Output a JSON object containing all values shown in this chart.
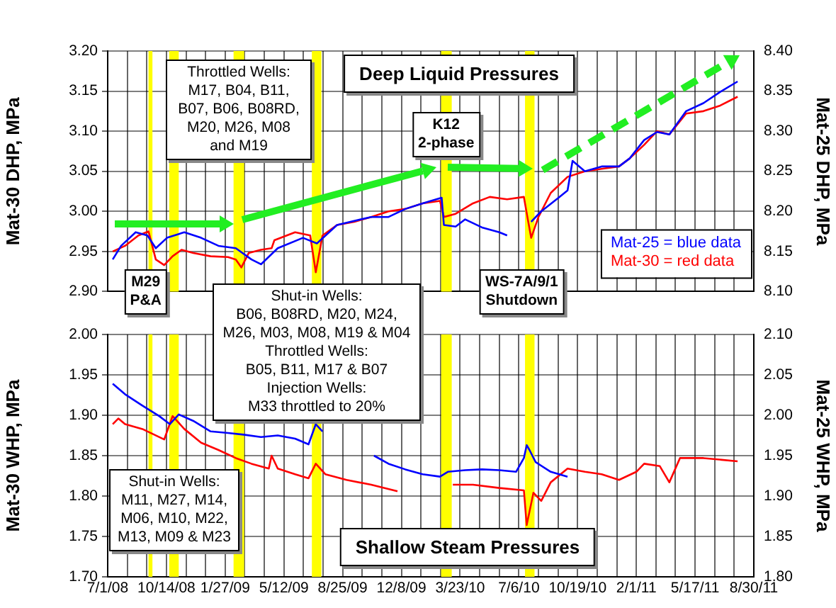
{
  "chart_data": [
    {
      "type": "line",
      "title": "Deep Liquid Pressures",
      "ylabel": "Mat-30 DHP, MPa",
      "y2label": "Mat-25 DHP, MPa",
      "series": [
        {
          "name": "Mat-25 = blue data",
          "color": "#0000ff",
          "axis": "y2",
          "x": [
            "2008-07-10",
            "2008-07-25",
            "2008-08-20",
            "2008-09-10",
            "2008-09-25",
            "2008-10-15",
            "2008-11-15",
            "2008-12-15",
            "2009-01-15",
            "2009-02-15",
            "2009-03-15",
            "2009-04-01",
            "2009-05-01",
            "2009-06-15",
            "2009-07-10",
            "2009-08-15",
            "2009-10-15",
            "2009-11-15",
            "2009-12-15",
            "2010-01-15",
            "2010-02-18",
            "2010-02-22",
            "2010-03-15",
            "2010-04-01",
            "2010-05-01",
            "2010-06-01",
            "2010-06-15",
            "2010-07-05",
            "2010-07-28",
            "2010-08-15",
            "2010-09-15",
            "2010-10-01",
            "2010-10-10",
            "2010-11-01",
            "2010-12-01",
            "2011-01-01",
            "2011-01-20",
            "2011-02-15",
            "2011-03-10",
            "2011-04-01",
            "2011-05-01",
            "2011-06-01",
            "2011-07-01",
            "2011-08-01"
          ],
          "values": [
            8.14,
            8.157,
            8.174,
            8.17,
            8.154,
            8.167,
            8.174,
            8.167,
            8.157,
            8.154,
            8.14,
            8.134,
            8.154,
            8.167,
            8.16,
            8.183,
            8.193,
            8.193,
            8.203,
            8.21,
            8.217,
            8.183,
            8.181,
            8.19,
            8.18,
            8.174,
            8.17,
            null,
            8.187,
            8.2,
            8.217,
            8.226,
            8.263,
            8.25,
            8.256,
            8.256,
            8.266,
            8.289,
            8.299,
            8.296,
            8.325,
            8.335,
            8.349,
            8.362
          ]
        },
        {
          "name": "Mat-30 = red data",
          "color": "#ff0000",
          "x": [
            "2008-07-10",
            "2008-08-01",
            "2008-08-25",
            "2008-09-12",
            "2008-09-25",
            "2008-10-10",
            "2008-10-25",
            "2008-11-10",
            "2008-12-01",
            "2009-01-01",
            "2009-02-01",
            "2009-02-15",
            "2009-02-25",
            "2009-03-10",
            "2009-04-01",
            "2009-04-20",
            "2009-04-25",
            "2009-06-01",
            "2009-06-28",
            "2009-07-08",
            "2009-07-20",
            "2009-08-15",
            "2009-09-15",
            "2009-10-15",
            "2009-11-15",
            "2009-12-15",
            "2010-01-15",
            "2010-02-15",
            "2010-02-22",
            "2010-03-15",
            "2010-04-15",
            "2010-05-15",
            "2010-06-15",
            "2010-07-15",
            "2010-07-22",
            "2010-07-28",
            "2010-08-10",
            "2010-09-01",
            "2010-10-01",
            "2010-11-01",
            "2010-12-01",
            "2011-01-01",
            "2011-01-20",
            "2011-02-15",
            "2011-03-10",
            "2011-04-01",
            "2011-05-01",
            "2011-06-01",
            "2011-07-01",
            "2011-08-01"
          ],
          "values": [
            2.95,
            2.957,
            2.97,
            2.975,
            2.94,
            2.933,
            2.944,
            2.952,
            2.948,
            2.944,
            2.943,
            2.94,
            2.93,
            2.948,
            2.952,
            2.954,
            2.964,
            2.974,
            2.97,
            2.924,
            2.97,
            2.983,
            2.987,
            2.993,
            3.0,
            3.003,
            3.01,
            3.013,
            2.993,
            2.997,
            3.01,
            3.018,
            3.015,
            3.018,
            2.99,
            2.967,
            2.993,
            3.023,
            3.043,
            3.05,
            3.053,
            3.056,
            3.066,
            3.083,
            3.1,
            3.096,
            3.122,
            3.125,
            3.132,
            3.143
          ]
        }
      ],
      "xlim": [
        "2008-07-01",
        "2011-08-30"
      ],
      "xticks": [
        {
          "value": "2008-07-01",
          "label": null
        },
        {
          "value": "2008-08-05",
          "label": null
        },
        {
          "value": "2008-09-09",
          "label": null
        },
        {
          "value": "2008-10-14",
          "label": null
        },
        {
          "value": "2008-11-18",
          "label": null
        },
        {
          "value": "2008-12-23",
          "label": null
        },
        {
          "value": "2009-01-27",
          "label": null
        },
        {
          "value": "2009-03-03",
          "label": null
        },
        {
          "value": "2009-04-07",
          "label": null
        },
        {
          "value": "2009-05-12",
          "label": null
        },
        {
          "value": "2009-06-16",
          "label": null
        },
        {
          "value": "2009-07-21",
          "label": null
        },
        {
          "value": "2009-08-25",
          "label": null
        },
        {
          "value": "2009-09-29",
          "label": null
        },
        {
          "value": "2009-11-03",
          "label": null
        },
        {
          "value": "2009-12-08",
          "label": null
        },
        {
          "value": "2010-01-12",
          "label": null
        },
        {
          "value": "2010-02-16",
          "label": null
        },
        {
          "value": "2010-03-23",
          "label": null
        },
        {
          "value": "2010-04-27",
          "label": null
        },
        {
          "value": "2010-06-01",
          "label": null
        },
        {
          "value": "2010-07-06",
          "label": null
        },
        {
          "value": "2010-08-10",
          "label": null
        },
        {
          "value": "2010-09-14",
          "label": null
        },
        {
          "value": "2010-10-19",
          "label": null
        },
        {
          "value": "2010-11-23",
          "label": null
        },
        {
          "value": "2010-12-28",
          "label": null
        },
        {
          "value": "2011-02-01",
          "label": null
        },
        {
          "value": "2011-03-08",
          "label": null
        },
        {
          "value": "2011-04-12",
          "label": null
        },
        {
          "value": "2011-05-17",
          "label": null
        },
        {
          "value": "2011-06-21",
          "label": null
        },
        {
          "value": "2011-07-26",
          "label": null
        },
        {
          "value": "2011-08-30",
          "label": null
        }
      ],
      "ylim": [
        2.9,
        3.2
      ],
      "yticks": [
        {
          "value": 2.9,
          "label": "2.90"
        },
        {
          "value": 2.95,
          "label": "2.95"
        },
        {
          "value": 3.0,
          "label": "3.00"
        },
        {
          "value": 3.05,
          "label": "3.05"
        },
        {
          "value": 3.1,
          "label": "3.10"
        },
        {
          "value": 3.15,
          "label": "3.15"
        },
        {
          "value": 3.2,
          "label": "3.20"
        }
      ],
      "y2lim": [
        8.1,
        8.4
      ],
      "y2ticks": [
        {
          "value": 8.1,
          "label": "8.10"
        },
        {
          "value": 8.15,
          "label": "8.15"
        },
        {
          "value": 8.2,
          "label": "8.20"
        },
        {
          "value": 8.25,
          "label": "8.25"
        },
        {
          "value": 8.3,
          "label": "8.30"
        },
        {
          "value": 8.35,
          "label": "8.35"
        },
        {
          "value": 8.4,
          "label": "8.40"
        }
      ],
      "bands": [
        {
          "axis": "x",
          "from": "2008-09-12",
          "to": "2008-09-19",
          "color": "#ffff00"
        },
        {
          "axis": "x",
          "from": "2008-10-19",
          "to": "2008-11-05",
          "color": "#ffff00"
        },
        {
          "axis": "x",
          "from": "2009-02-11",
          "to": "2009-03-02",
          "color": "#ffff00"
        },
        {
          "axis": "x",
          "from": "2009-07-01",
          "to": "2009-07-18",
          "color": "#ffff00"
        },
        {
          "axis": "x",
          "from": "2010-02-17",
          "to": "2010-03-08",
          "color": "#ffff00"
        },
        {
          "axis": "x",
          "from": "2010-07-17",
          "to": "2010-08-03",
          "color": "#ffff00"
        }
      ],
      "annotations": [
        "Throttled Wells:\nM17, B04, B11,\nB07, B06, B08RD,\nM20, M26, M08\nand M19",
        {
          "text": "M29\nP&A",
          "x": "2008-09-07",
          "y": 2.9
        },
        {
          "text": "K12\n2-phase",
          "x": "2010-02-26",
          "y": 3.095
        },
        {
          "text": "WS-7A/9/1\nShutdown",
          "x": "2010-07-11",
          "y": 2.9
        }
      ],
      "grid": true,
      "legend": "bottom right",
      "tick_labels": "y",
      "marker": "none",
      "line_style": "solid"
    },
    {
      "type": "line",
      "title": "Shallow Steam Pressures",
      "ylabel": "Mat-30 WHP, MPa",
      "y2label": "Mat-25 WHP, MPa",
      "series": [
        {
          "color": "#0000ff",
          "axis": "y2",
          "x": [
            "2008-07-10",
            "2008-08-01",
            "2008-09-01",
            "2008-10-01",
            "2008-10-20",
            "2008-11-05",
            "2008-12-01",
            "2009-01-01",
            "2009-02-01",
            "2009-03-01",
            "2009-04-01",
            "2009-05-01",
            "2009-06-01",
            "2009-06-25",
            "2009-07-08",
            "2009-07-20",
            "2009-09-01",
            "2009-10-20",
            "2009-11-15",
            "2009-12-15",
            "2010-01-15",
            "2010-02-15",
            "2010-03-01",
            "2010-04-01",
            "2010-05-01",
            "2010-06-01",
            "2010-07-01",
            "2010-07-15",
            "2010-07-20",
            "2010-07-25",
            "2010-08-05",
            "2010-09-01",
            "2010-10-01"
          ],
          "values": [
            2.039,
            2.026,
            2.012,
            1.999,
            1.989,
            2.001,
            1.993,
            1.98,
            1.978,
            1.976,
            1.973,
            1.975,
            1.971,
            1.964,
            1.989,
            1.98,
            null,
            1.95,
            1.94,
            1.933,
            1.927,
            1.924,
            1.93,
            1.932,
            1.933,
            1.932,
            1.93,
            1.947,
            1.963,
            1.957,
            1.942,
            1.93,
            1.924
          ]
        },
        {
          "color": "#ff0000",
          "x": [
            "2008-07-10",
            "2008-07-20",
            "2008-08-01",
            "2008-09-01",
            "2008-10-10",
            "2008-10-25",
            "2008-11-15",
            "2008-12-15",
            "2009-01-15",
            "2009-02-15",
            "2009-03-15",
            "2009-04-15",
            "2009-04-20",
            "2009-05-01",
            "2009-06-01",
            "2009-06-25",
            "2009-07-08",
            "2009-07-25",
            "2009-09-01",
            "2009-10-15",
            "2009-12-01",
            "2010-01-15",
            "2010-03-10",
            "2010-04-15",
            "2010-06-01",
            "2010-07-15",
            "2010-07-20",
            "2010-08-01",
            "2010-08-15",
            "2010-09-01",
            "2010-10-01",
            "2010-11-01",
            "2010-12-01",
            "2011-01-01",
            "2011-02-01",
            "2011-02-15",
            "2011-03-15",
            "2011-04-01",
            "2011-04-20",
            "2011-06-01",
            "2011-08-01"
          ],
          "values": [
            1.889,
            1.896,
            1.889,
            1.883,
            1.87,
            1.899,
            1.883,
            1.866,
            1.857,
            1.847,
            1.84,
            1.834,
            1.85,
            1.834,
            1.827,
            1.822,
            1.84,
            1.827,
            1.82,
            1.814,
            1.806,
            null,
            1.814,
            1.814,
            1.81,
            1.807,
            1.764,
            1.804,
            1.794,
            1.817,
            1.834,
            1.83,
            1.827,
            1.82,
            1.83,
            1.84,
            1.837,
            1.817,
            1.847,
            1.847,
            1.843
          ]
        }
      ],
      "xlim": [
        "2008-07-01",
        "2011-08-30"
      ],
      "xticks": [
        {
          "value": "2008-07-01",
          "label": "7/1/08"
        },
        {
          "value": "2008-08-05",
          "label": null
        },
        {
          "value": "2008-09-09",
          "label": null
        },
        {
          "value": "2008-10-14",
          "label": "10/14/08"
        },
        {
          "value": "2008-11-18",
          "label": null
        },
        {
          "value": "2008-12-23",
          "label": null
        },
        {
          "value": "2009-01-27",
          "label": "1/27/09"
        },
        {
          "value": "2009-03-03",
          "label": null
        },
        {
          "value": "2009-04-07",
          "label": null
        },
        {
          "value": "2009-05-12",
          "label": "5/12/09"
        },
        {
          "value": "2009-06-16",
          "label": null
        },
        {
          "value": "2009-07-21",
          "label": null
        },
        {
          "value": "2009-08-25",
          "label": "8/25/09"
        },
        {
          "value": "2009-09-29",
          "label": null
        },
        {
          "value": "2009-11-03",
          "label": null
        },
        {
          "value": "2009-12-08",
          "label": "12/8/09"
        },
        {
          "value": "2010-01-12",
          "label": null
        },
        {
          "value": "2010-02-16",
          "label": null
        },
        {
          "value": "2010-03-23",
          "label": "3/23/10"
        },
        {
          "value": "2010-04-27",
          "label": null
        },
        {
          "value": "2010-06-01",
          "label": null
        },
        {
          "value": "2010-07-06",
          "label": "7/6/10"
        },
        {
          "value": "2010-08-10",
          "label": null
        },
        {
          "value": "2010-09-14",
          "label": null
        },
        {
          "value": "2010-10-19",
          "label": "10/19/10"
        },
        {
          "value": "2010-11-23",
          "label": null
        },
        {
          "value": "2010-12-28",
          "label": null
        },
        {
          "value": "2011-02-01",
          "label": "2/1/11"
        },
        {
          "value": "2011-03-08",
          "label": null
        },
        {
          "value": "2011-04-12",
          "label": null
        },
        {
          "value": "2011-05-17",
          "label": "5/17/11"
        },
        {
          "value": "2011-06-21",
          "label": null
        },
        {
          "value": "2011-07-26",
          "label": null
        },
        {
          "value": "2011-08-30",
          "label": "8/30/11"
        }
      ],
      "ylim": [
        1.7,
        2.0
      ],
      "yticks": [
        {
          "value": 1.7,
          "label": "1.70"
        },
        {
          "value": 1.75,
          "label": "1.75"
        },
        {
          "value": 1.8,
          "label": "1.80"
        },
        {
          "value": 1.85,
          "label": "1.85"
        },
        {
          "value": 1.9,
          "label": "1.90"
        },
        {
          "value": 1.95,
          "label": "1.95"
        },
        {
          "value": 2.0,
          "label": "2.00"
        }
      ],
      "y2lim": [
        1.8,
        2.1
      ],
      "y2ticks": [
        {
          "value": 1.8,
          "label": "1.80"
        },
        {
          "value": 1.85,
          "label": "1.85"
        },
        {
          "value": 1.9,
          "label": "1.90"
        },
        {
          "value": 1.95,
          "label": "1.95"
        },
        {
          "value": 2.0,
          "label": "2.00"
        },
        {
          "value": 2.05,
          "label": "2.05"
        },
        {
          "value": 2.1,
          "label": "2.10"
        }
      ],
      "bands": [
        {
          "axis": "x",
          "from": "2008-09-12",
          "to": "2008-09-19",
          "color": "#ffff00"
        },
        {
          "axis": "x",
          "from": "2008-10-19",
          "to": "2008-11-05",
          "color": "#ffff00"
        },
        {
          "axis": "x",
          "from": "2009-02-11",
          "to": "2009-03-02",
          "color": "#ffff00"
        },
        {
          "axis": "x",
          "from": "2009-07-01",
          "to": "2009-07-18",
          "color": "#ffff00"
        },
        {
          "axis": "x",
          "from": "2010-02-17",
          "to": "2010-03-08",
          "color": "#ffff00"
        },
        {
          "axis": "x",
          "from": "2010-07-17",
          "to": "2010-08-03",
          "color": "#ffff00"
        }
      ],
      "annotations": [
        "Shut-in Wells:\nB06, B08RD, M20, M24,\nM26, M03, M08, M19 & M04\nThrottled Wells:\nB05, B11, M17 & B07\nInjection Wells:\nM33 throttled to 20%",
        "Shut-in Wells:\nM11, M27, M14,\nM06, M10, M22,\nM13, M09 & M23"
      ],
      "grid": true,
      "marker": "none",
      "line_style": "solid"
    }
  ]
}
